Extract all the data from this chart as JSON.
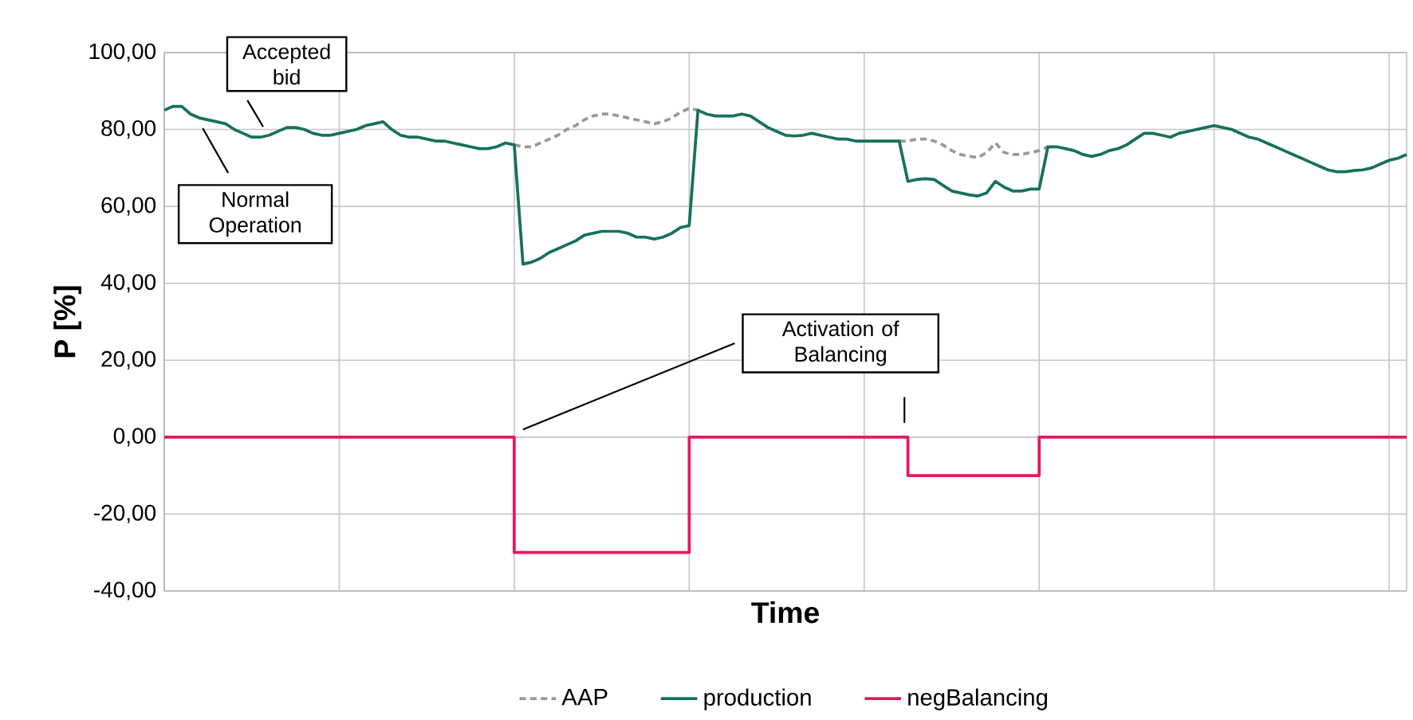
{
  "chart_data": {
    "type": "line",
    "xlabel": "Time",
    "ylabel": "P [%]",
    "categories": [
      null,
      null,
      null,
      null,
      null,
      null,
      null,
      null,
      null,
      null,
      null,
      null,
      null,
      null,
      null,
      null,
      null,
      null,
      null,
      null,
      null,
      null,
      null,
      null,
      null,
      null,
      null,
      null,
      null,
      null,
      null,
      null,
      null,
      null,
      null,
      null,
      null,
      null,
      null,
      null,
      null,
      null,
      null,
      null,
      null,
      null,
      null,
      null,
      null,
      null,
      null,
      null,
      null,
      null,
      null,
      null,
      null,
      null,
      null,
      null,
      null,
      null,
      null,
      null,
      null,
      null,
      null,
      null,
      null,
      null,
      null,
      null,
      null,
      null,
      null,
      null,
      null,
      null,
      null,
      null,
      null,
      null,
      null,
      null,
      null,
      null,
      null,
      null,
      null,
      null,
      null,
      null,
      null,
      null,
      null,
      null,
      null,
      null,
      null,
      null,
      null,
      null,
      null,
      null,
      null,
      null,
      null,
      null,
      null,
      null,
      null,
      null,
      null,
      null,
      null,
      null,
      null,
      null,
      null,
      null,
      null,
      null,
      null,
      null,
      null,
      null,
      null,
      null,
      null,
      null,
      null,
      null,
      null,
      null,
      null,
      null,
      null,
      null,
      null,
      null,
      null,
      null,
      null
    ],
    "series": [
      {
        "name": "AAP",
        "color": "#999999",
        "line_style": "dashed",
        "values": [
          null,
          null,
          null,
          null,
          null,
          null,
          null,
          null,
          null,
          null,
          null,
          null,
          null,
          null,
          null,
          null,
          null,
          null,
          null,
          null,
          null,
          null,
          null,
          null,
          null,
          null,
          null,
          null,
          null,
          null,
          null,
          null,
          null,
          null,
          null,
          null,
          null,
          null,
          null,
          null,
          76,
          75.5,
          75.5,
          76.5,
          77.5,
          78.5,
          80,
          81,
          82.5,
          83.5,
          84,
          84,
          83.5,
          83,
          82.5,
          82,
          81.5,
          82,
          83,
          84.5,
          85.5,
          85,
          null,
          null,
          null,
          null,
          null,
          null,
          null,
          null,
          null,
          null,
          null,
          null,
          null,
          null,
          null,
          null,
          null,
          null,
          null,
          null,
          null,
          null,
          77,
          77,
          77.5,
          77.5,
          77,
          76,
          74.5,
          73.5,
          73,
          72.7,
          74,
          76.5,
          74,
          73.5,
          73.5,
          74,
          74.5,
          75.5,
          null,
          null,
          null,
          null,
          null,
          null,
          null,
          null,
          null,
          null,
          null,
          null,
          null,
          null,
          null,
          null,
          null,
          null,
          null,
          null,
          null,
          null,
          null,
          null,
          null,
          null,
          null,
          null,
          null,
          null,
          null,
          null,
          null,
          null,
          null,
          null,
          null,
          null,
          null,
          null,
          null
        ]
      },
      {
        "name": "production",
        "color": "#17705c",
        "line_style": "solid",
        "values": [
          85,
          86,
          86,
          84,
          83,
          82.5,
          82,
          81.5,
          80,
          79,
          78,
          78,
          78.5,
          79.5,
          80.5,
          80.5,
          80,
          79,
          78.5,
          78.5,
          79,
          79.5,
          80,
          81,
          81.5,
          82,
          80,
          78.5,
          78,
          78,
          77.5,
          77,
          77,
          76.5,
          76,
          75.5,
          75,
          75,
          75.5,
          76.5,
          76,
          45,
          45.5,
          46.5,
          48,
          49,
          50,
          51,
          52.5,
          53,
          53.5,
          53.5,
          53.5,
          53,
          52,
          52,
          51.5,
          52,
          53,
          54.5,
          55,
          85,
          84,
          83.5,
          83.5,
          83.5,
          84,
          83.5,
          82,
          80.5,
          79.5,
          78.5,
          78.3,
          78.5,
          79,
          78.5,
          78,
          77.5,
          77.5,
          77,
          77,
          77,
          77,
          77,
          77,
          66.5,
          67,
          67.2,
          67,
          65.5,
          64,
          63.5,
          63,
          62.7,
          63.5,
          66.5,
          65,
          64,
          64,
          64.5,
          64.5,
          75.5,
          75.5,
          75,
          74.5,
          73.5,
          73,
          73.5,
          74.5,
          75,
          76,
          77.5,
          79,
          79,
          78.5,
          78,
          79,
          79.5,
          80,
          80.5,
          81,
          80.5,
          80,
          79,
          78,
          77.5,
          76.5,
          75.5,
          74.5,
          73.5,
          72.5,
          71.5,
          70.5,
          69.5,
          69,
          69,
          69.3,
          69.5,
          70,
          71,
          72,
          72.5,
          73.5
        ]
      },
      {
        "name": "negBalancing",
        "color": "#e8175d",
        "type": "step",
        "line_style": "solid",
        "values": [
          0,
          0,
          0,
          0,
          0,
          0,
          0,
          0,
          0,
          0,
          0,
          0,
          0,
          0,
          0,
          0,
          0,
          0,
          0,
          0,
          0,
          0,
          0,
          0,
          0,
          0,
          0,
          0,
          0,
          0,
          0,
          0,
          0,
          0,
          0,
          0,
          0,
          0,
          0,
          0,
          -30,
          -30,
          -30,
          -30,
          -30,
          -30,
          -30,
          -30,
          -30,
          -30,
          -30,
          -30,
          -30,
          -30,
          -30,
          -30,
          -30,
          -30,
          -30,
          -30,
          0,
          0,
          0,
          0,
          0,
          0,
          0,
          0,
          0,
          0,
          0,
          0,
          0,
          0,
          0,
          0,
          0,
          0,
          0,
          0,
          0,
          0,
          0,
          0,
          0,
          -10,
          -10,
          -10,
          -10,
          -10,
          -10,
          -10,
          -10,
          -10,
          -10,
          -10,
          -10,
          -10,
          -10,
          -10,
          0,
          0,
          0,
          0,
          0,
          0,
          0,
          0,
          0,
          0,
          0,
          0,
          0,
          0,
          0,
          0,
          0,
          0,
          0,
          0,
          0,
          0,
          0,
          0,
          0,
          0,
          0,
          0,
          0,
          0,
          0,
          0,
          0,
          0,
          0,
          0,
          0,
          0,
          0,
          0,
          0,
          0,
          0
        ]
      }
    ],
    "ylim": [
      -40,
      100
    ],
    "yticks": [
      {
        "value": -40,
        "label": "-40,00"
      },
      {
        "value": -20,
        "label": "-20,00"
      },
      {
        "value": 0,
        "label": "0,00"
      },
      {
        "value": 20,
        "label": "20,00"
      },
      {
        "value": 40,
        "label": "40,00"
      },
      {
        "value": 60,
        "label": "60,00"
      },
      {
        "value": 80,
        "label": "80,00"
      },
      {
        "value": 100,
        "label": "100,00"
      }
    ],
    "grid": true,
    "legend": "bottom",
    "tick_labels": "y",
    "annotations": [
      "Accepted bid",
      "Normal Operation",
      "Activation of Balancing"
    ]
  }
}
